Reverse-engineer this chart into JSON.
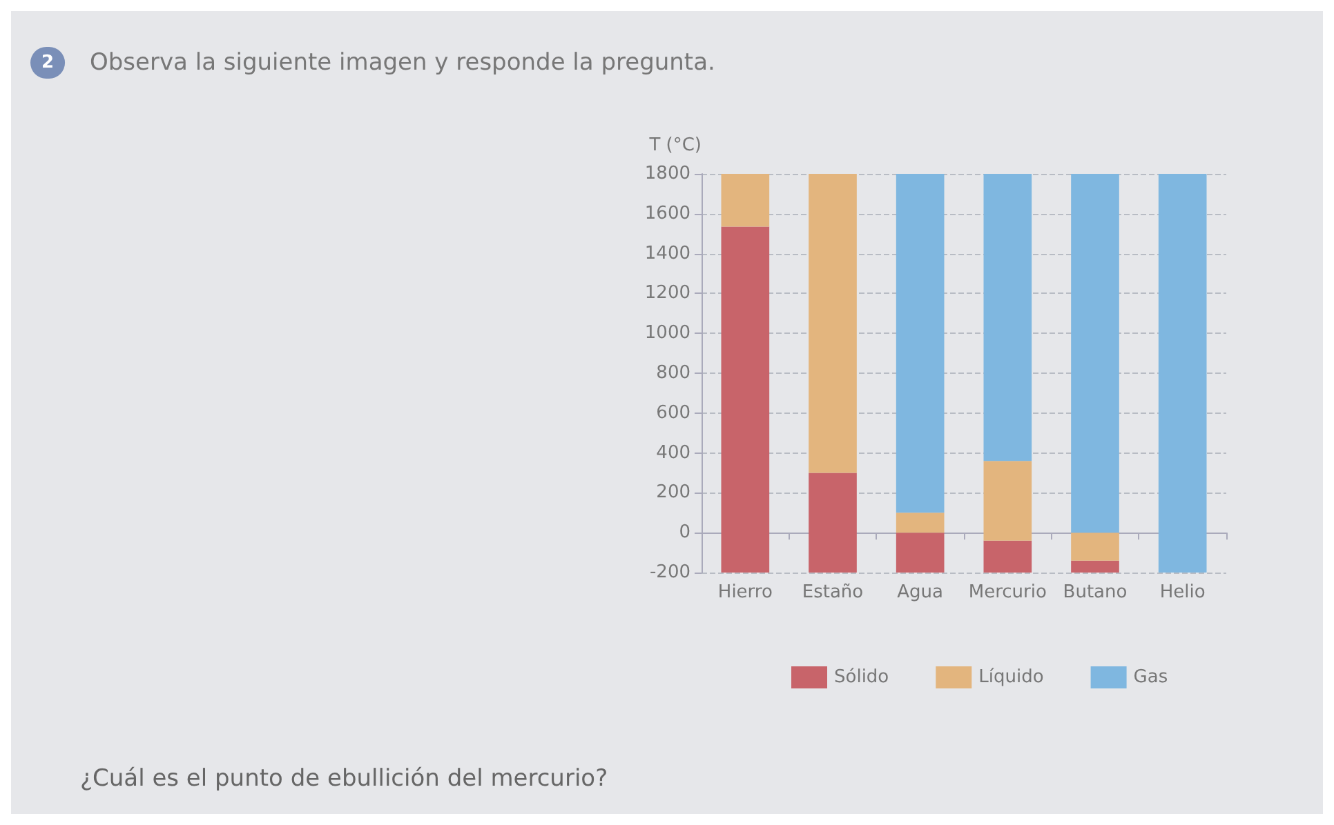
{
  "chart_data": {
    "type": "bar",
    "title": "Observa la siguiente imagen y responde la pregunta.",
    "ylabel": "T (°C)",
    "annotations": [
      "2",
      "¿Cuál es el punto de ebullición del mercurio?"
    ],
    "categories": [
      "Hierro",
      "Estaño",
      "Agua",
      "Mercurio",
      "Butano",
      "Helio"
    ],
    "series": [
      {
        "name": "Sólido",
        "color": "#c8646a",
        "base": [
          -200,
          -200,
          -200,
          -200,
          -200,
          null
        ],
        "values": [
          1735,
          500,
          200,
          160,
          60,
          null
        ]
      },
      {
        "name": "Líquido",
        "color": "#e3b57e",
        "base": [
          1535,
          300,
          0,
          -40,
          -140,
          null
        ],
        "values": [
          265,
          1500,
          100,
          400,
          140,
          null
        ]
      },
      {
        "name": "Gas",
        "color": "#7fb7e0",
        "base": [
          null,
          null,
          100,
          360,
          0,
          -200
        ],
        "values": [
          null,
          null,
          1700,
          1440,
          1800,
          2000
        ]
      }
    ],
    "ylim": [
      -200,
      1800
    ],
    "yticks": [
      -200,
      0,
      200,
      400,
      600,
      800,
      1000,
      1200,
      1400,
      1600,
      1800
    ],
    "grid": "y",
    "legend": "bottom"
  }
}
